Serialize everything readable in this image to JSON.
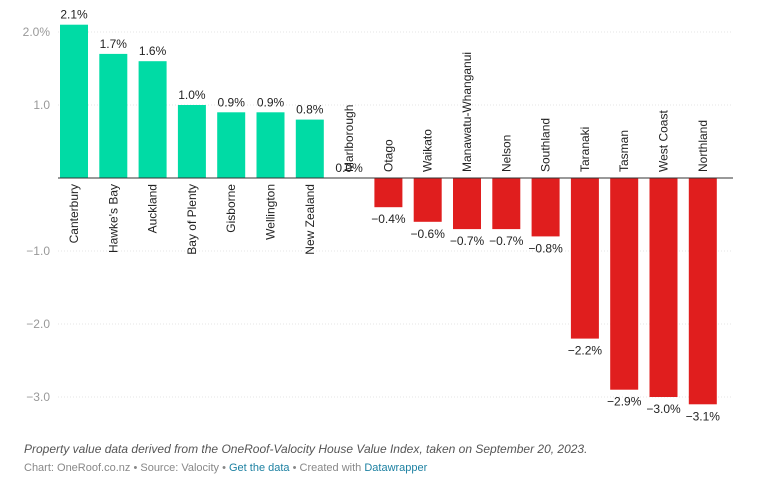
{
  "chart_data": {
    "type": "bar",
    "categories": [
      "Canterbury",
      "Hawke's Bay",
      "Auckland",
      "Bay of Plenty",
      "Gisborne",
      "Wellington",
      "New Zealand",
      "Marlborough",
      "Otago",
      "Waikato",
      "Manawatu-Whanganui",
      "Nelson",
      "Southland",
      "Taranaki",
      "Tasman",
      "West Coast",
      "Northland"
    ],
    "values": [
      2.1,
      1.7,
      1.6,
      1.0,
      0.9,
      0.9,
      0.8,
      0.0,
      -0.4,
      -0.6,
      -0.7,
      -0.7,
      -0.8,
      -2.2,
      -2.9,
      -3.0,
      -3.1
    ],
    "value_labels": [
      "2.1%",
      "1.7%",
      "1.6%",
      "1.0%",
      "0.9%",
      "0.9%",
      "0.8%",
      "0.0%",
      "−0.4%",
      "−0.6%",
      "−0.7%",
      "−0.7%",
      "−0.8%",
      "−2.2%",
      "−2.9%",
      "−3.0%",
      "−3.1%"
    ],
    "y_ticks": [
      2.0,
      1.0,
      -1.0,
      -2.0,
      -3.0
    ],
    "y_tick_labels": [
      "2.0%",
      "1.0",
      "−1.0",
      "−2.0",
      "−3.0"
    ],
    "ylim": [
      -3.3,
      2.2
    ],
    "colors": {
      "positive": "#00dba5",
      "negative": "#e01e1e"
    }
  },
  "notes": "Property value data derived from the OneRoof-Valocity House Value Index, taken on September 20, 2023.",
  "footer": {
    "chart_credit": "Chart: OneRoof.co.nz",
    "source": "Source: Valocity",
    "get_data": "Get the data",
    "created_with": "Created with",
    "datawrapper": "Datawrapper",
    "sep": " • "
  }
}
